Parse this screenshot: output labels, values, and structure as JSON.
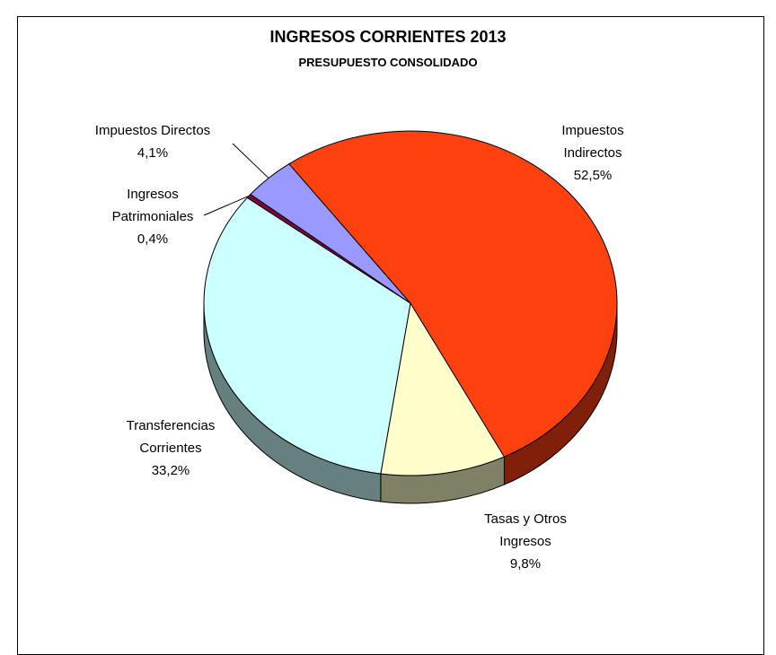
{
  "chart_data": {
    "type": "pie",
    "title": "INGRESOS CORRIENTES 2013",
    "subtitle": "PRESUPUESTO CONSOLIDADO",
    "slices": [
      {
        "name": "Impuestos Indirectos",
        "label_lines": [
          "Impuestos",
          "Indirectos",
          "52,5%"
        ],
        "value": 52.5,
        "color": "#FF4110",
        "side_color": "#80200A"
      },
      {
        "name": "Tasas y Otros Ingresos",
        "label_lines": [
          "Tasas y Otros",
          "Ingresos",
          "9,8%"
        ],
        "value": 9.8,
        "color": "#FFFFCC",
        "side_color": "#808066"
      },
      {
        "name": "Transferencias Corrientes",
        "label_lines": [
          "Transferencias",
          "Corrientes",
          "33,2%"
        ],
        "value": 33.2,
        "color": "#CCFFFF",
        "side_color": "#668080"
      },
      {
        "name": "Ingresos Patrimoniales",
        "label_lines": [
          "Ingresos",
          "Patrimoniales",
          "0,4%"
        ],
        "value": 0.4,
        "color": "#800040",
        "side_color": "#400020"
      },
      {
        "name": "Impuestos Directos",
        "label_lines": [
          "Impuestos Directos",
          "4,1%"
        ],
        "value": 4.1,
        "color": "#9999FF",
        "side_color": "#4D4D80"
      }
    ]
  }
}
